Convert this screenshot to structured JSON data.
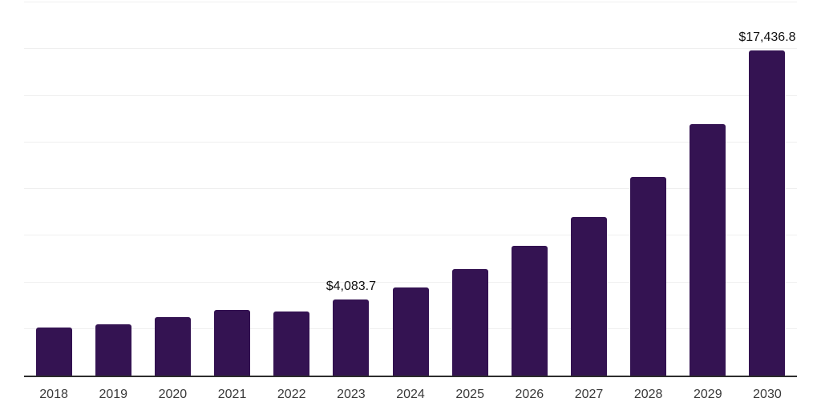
{
  "chart_data": {
    "type": "bar",
    "title": "",
    "xlabel": "",
    "ylabel": "",
    "categories": [
      "2018",
      "2019",
      "2020",
      "2021",
      "2022",
      "2023",
      "2024",
      "2025",
      "2026",
      "2027",
      "2028",
      "2029",
      "2030"
    ],
    "values": [
      2590,
      2760,
      3150,
      3510,
      3450,
      4083.7,
      4730,
      5720,
      6970,
      8510,
      10660,
      13480,
      17436.8
    ],
    "data_labels": {
      "2023": "$4,083.7",
      "2030": "$17,436.8"
    },
    "ylim": [
      0,
      20000
    ],
    "gridline_step": 2500,
    "grid": "horizontal",
    "legend": "none",
    "colors": {
      "bar": "#341352",
      "gridline": "#efefef",
      "axis_line": "#2d2d2d",
      "tick_label": "#3a3a3a",
      "data_label": "#111111",
      "background": "#ffffff"
    }
  }
}
